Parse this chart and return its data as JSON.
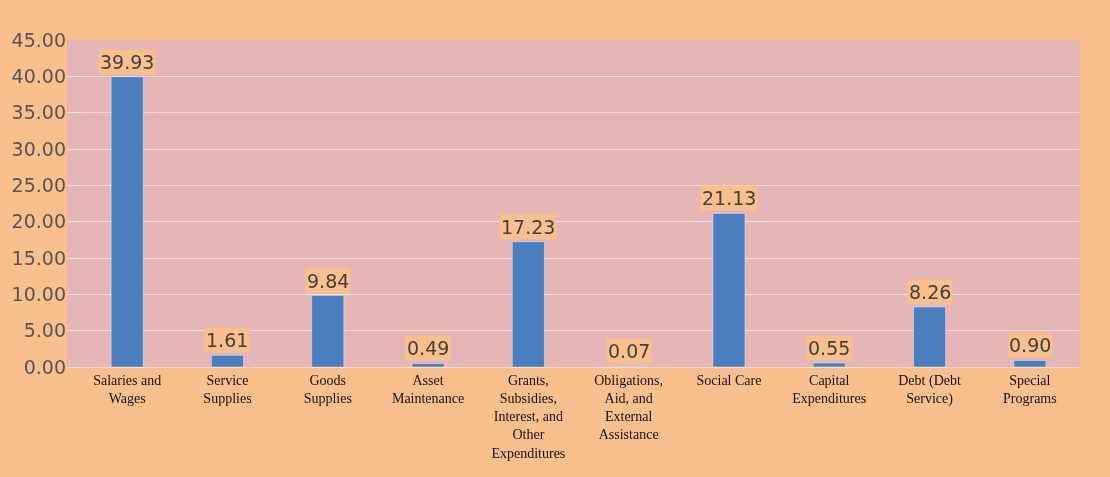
{
  "chart_data": {
    "type": "bar",
    "categories": [
      "Salaries and Wages",
      "Service Supplies",
      "Goods Supplies",
      "Asset Maintenance",
      "Grants, Subsidies, Interest, and Other Expenditures",
      "Obligations, Aid, and External Assistance",
      "Social Care",
      "Capital Expenditures",
      "Debt (Debt Service)",
      "Special Programs"
    ],
    "values": [
      39.93,
      1.61,
      9.84,
      0.49,
      17.23,
      0.07,
      21.13,
      0.55,
      8.26,
      0.9
    ],
    "value_labels": [
      "39.93",
      "1.61",
      "9.84",
      "0.49",
      "17.23",
      "0.07",
      "21.13",
      "0.55",
      "8.26",
      "0.90"
    ],
    "color": "#4a7ebf",
    "ylim": [
      0,
      45
    ],
    "yticks": [
      {
        "value": 0,
        "label": "0.00"
      },
      {
        "value": 5,
        "label": "5.00"
      },
      {
        "value": 10,
        "label": "10.00"
      },
      {
        "value": 15,
        "label": "15.00"
      },
      {
        "value": 20,
        "label": "20.00"
      },
      {
        "value": 25,
        "label": "25.00"
      },
      {
        "value": 30,
        "label": "30.00"
      },
      {
        "value": 35,
        "label": "35.00"
      },
      {
        "value": 40,
        "label": "40.00"
      },
      {
        "value": 45,
        "label": "45.00"
      }
    ],
    "grid": "y",
    "legend": false
  }
}
